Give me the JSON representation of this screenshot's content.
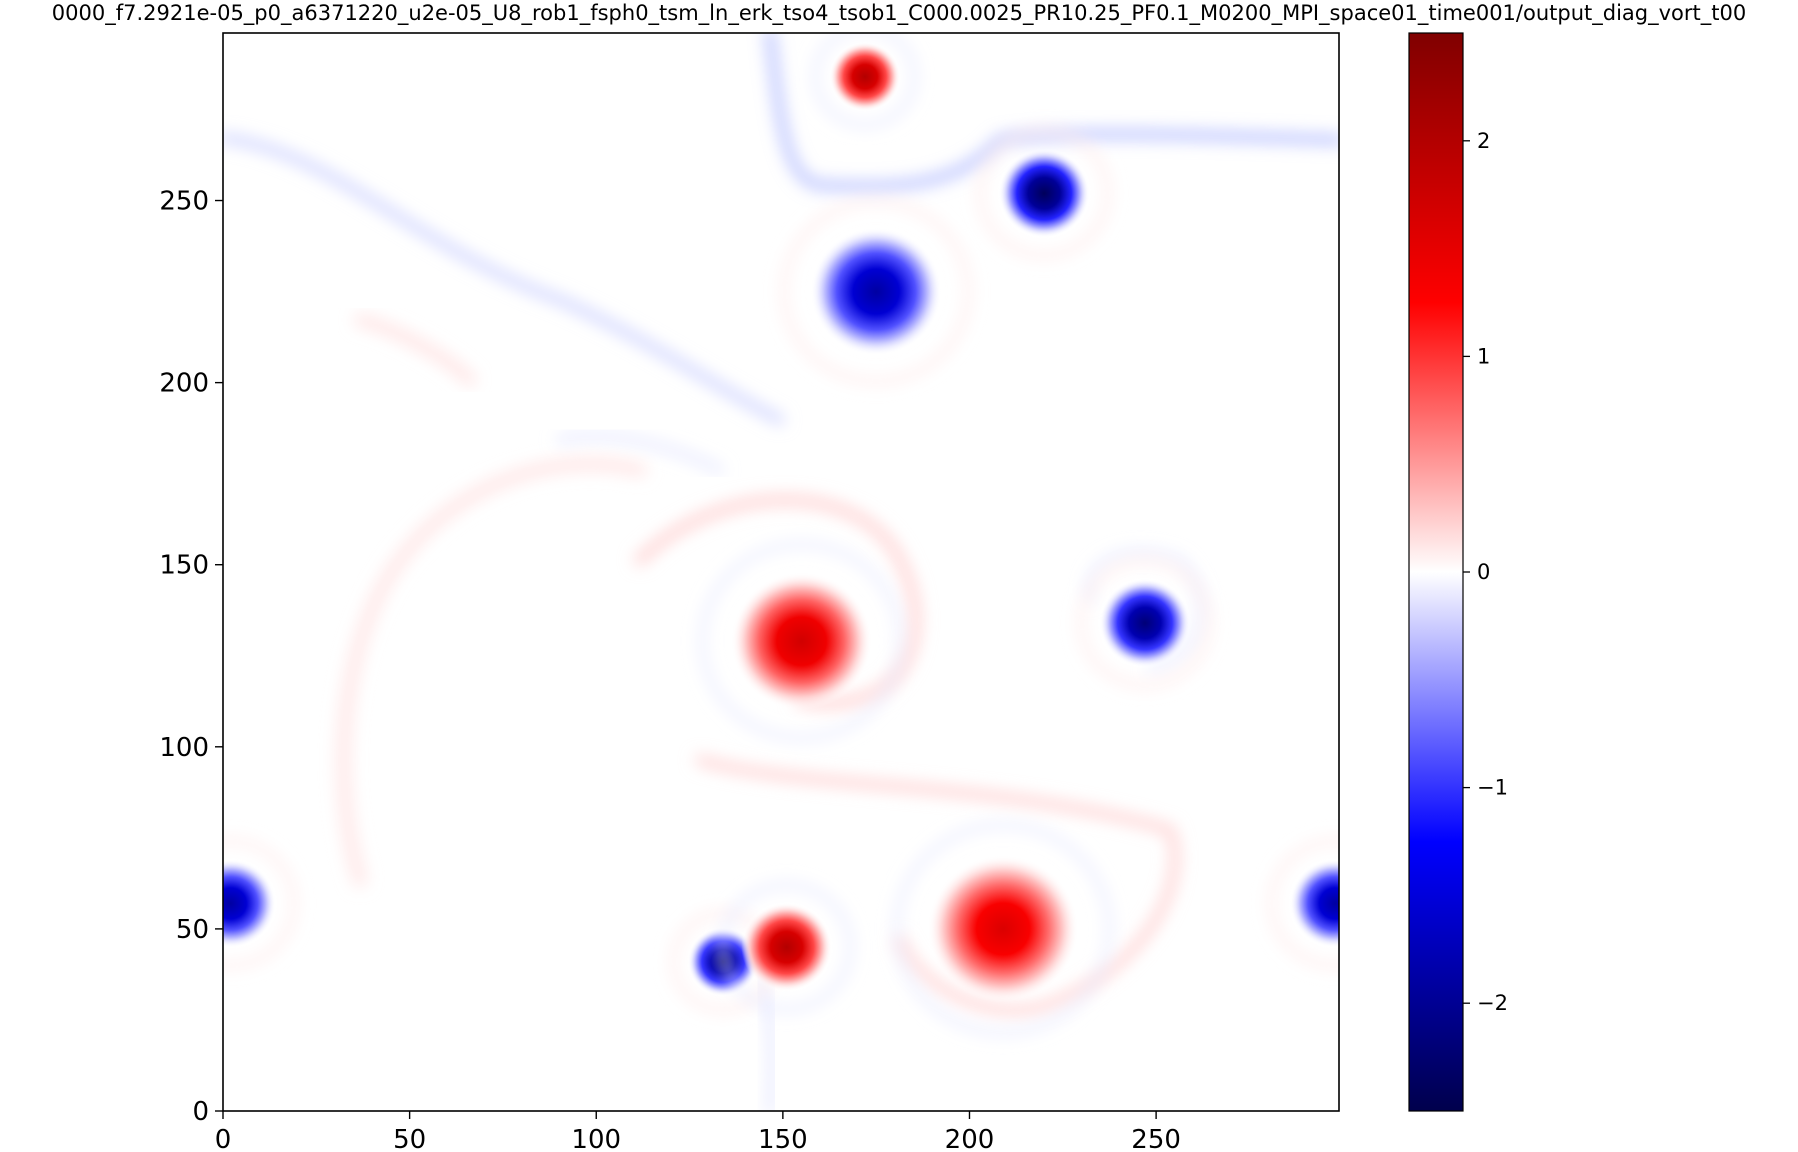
{
  "chart_data": {
    "type": "heatmap",
    "title": "0000_f7.2921e-05_p0_a6371220_u2e-05_U8_rob1_fsph0_tsm_ln_erk_tso4_tsob1_C000.0025_PR10.25_PF0.1_M0200_MPI_space01_time001/output_diag_vort_t00",
    "xlabel": "",
    "ylabel": "",
    "xlim": [
      0,
      299
    ],
    "ylim": [
      0,
      296
    ],
    "x_ticks": [
      0,
      50,
      100,
      150,
      200,
      250
    ],
    "y_ticks": [
      0,
      50,
      100,
      150,
      200,
      250
    ],
    "colorbar": {
      "colormap": "seismic",
      "range": [
        -2.5,
        2.5
      ],
      "ticks": [
        -2,
        -1,
        0,
        1,
        2
      ],
      "tick_labels": [
        "−2",
        "−1",
        "0",
        "1",
        "2"
      ]
    },
    "features": [
      {
        "sign": "positive",
        "x": 172,
        "y": 284,
        "radius": 7,
        "peak": 2.0
      },
      {
        "sign": "negative",
        "x": 220,
        "y": 252,
        "radius": 9,
        "peak": -2.4
      },
      {
        "sign": "negative",
        "x": 175,
        "y": 225,
        "radius": 13,
        "peak": -1.9
      },
      {
        "sign": "positive",
        "x": 155,
        "y": 129,
        "radius": 14,
        "peak": 1.7
      },
      {
        "sign": "negative",
        "x": 247,
        "y": 134,
        "radius": 9,
        "peak": -2.2
      },
      {
        "sign": "negative",
        "x": 2,
        "y": 57,
        "radius": 9,
        "peak": -1.9
      },
      {
        "sign": "negative",
        "x": 298,
        "y": 57,
        "radius": 9,
        "peak": -1.9
      },
      {
        "sign": "negative",
        "x": 134,
        "y": 41,
        "radius": 7,
        "peak": -2.2
      },
      {
        "sign": "positive",
        "x": 151,
        "y": 45,
        "radius": 9,
        "peak": 2.0
      },
      {
        "sign": "positive",
        "x": 209,
        "y": 50,
        "radius": 15,
        "peak": 1.6
      }
    ]
  }
}
